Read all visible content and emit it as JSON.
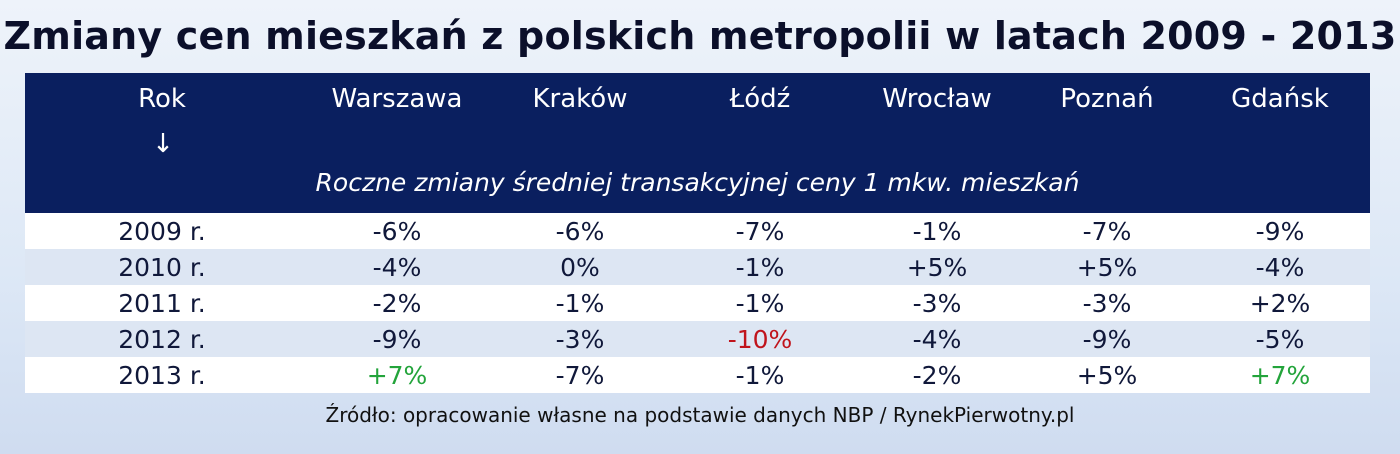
{
  "title": "Zmiany cen mieszkań z polskich metropolii w latach 2009 - 2013",
  "columns": [
    "Rok",
    "Warszawa",
    "Kraków",
    "Łódź",
    "Wrocław",
    "Poznań",
    "Gdańsk"
  ],
  "arrow": "↓",
  "subtitle": "Roczne zmiany średniej transakcyjnej ceny 1 mkw. mieszkań",
  "rows": [
    {
      "year": "2009 r.",
      "values": [
        "-6%",
        "-6%",
        "-7%",
        "-1%",
        "-7%",
        "-9%"
      ]
    },
    {
      "year": "2010 r.",
      "values": [
        "-4%",
        "0%",
        "-1%",
        "+5%",
        "+5%",
        "-4%"
      ]
    },
    {
      "year": "2011 r.",
      "values": [
        "-2%",
        "-1%",
        "-1%",
        "-3%",
        "-3%",
        "+2%"
      ]
    },
    {
      "year": "2012 r.",
      "values": [
        "-9%",
        "-3%",
        "-10%",
        "-4%",
        "-9%",
        "-5%"
      ]
    },
    {
      "year": "2013 r.",
      "values": [
        "+7%",
        "-7%",
        "-1%",
        "-2%",
        "+5%",
        "+7%"
      ]
    }
  ],
  "source": "Źródło: opracowanie własne na podstawie danych NBP / RynekPierwotny.pl",
  "colors": {
    "header_bg": "#0a1f5f",
    "highlight_red": "#c0141c",
    "highlight_green": "#23a43b",
    "row_alt": "#dde6f3"
  }
}
